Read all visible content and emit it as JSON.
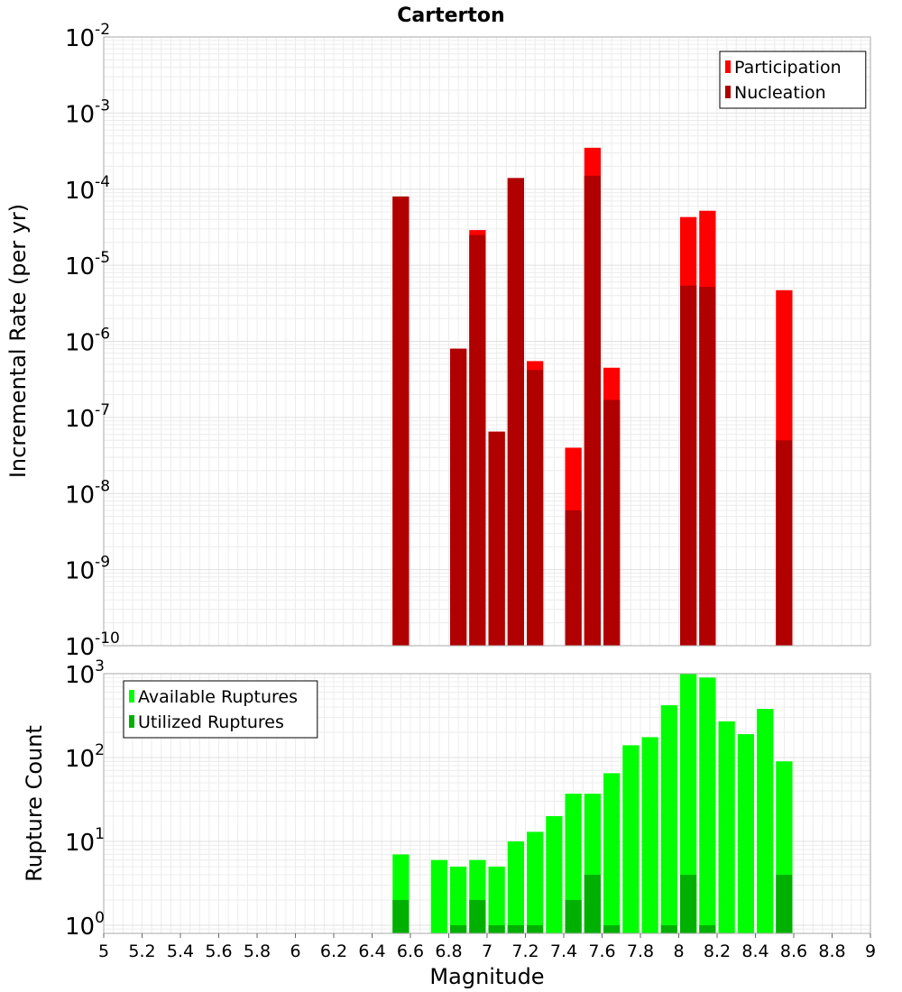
{
  "chart_data": [
    {
      "type": "bar",
      "title": "Carterton",
      "xlabel": "",
      "ylabel": "Incremental Rate (per yr)",
      "yscale": "log",
      "ylim": [
        1e-10,
        0.01
      ],
      "xlim": [
        5,
        9
      ],
      "grid": true,
      "legend_position": "top-right",
      "y_ticks": [
        {
          "base": "10",
          "exp": "-10"
        },
        {
          "base": "10",
          "exp": "-9"
        },
        {
          "base": "10",
          "exp": "-8"
        },
        {
          "base": "10",
          "exp": "-7"
        },
        {
          "base": "10",
          "exp": "-6"
        },
        {
          "base": "10",
          "exp": "-5"
        },
        {
          "base": "10",
          "exp": "-4"
        },
        {
          "base": "10",
          "exp": "-3"
        },
        {
          "base": "10",
          "exp": "-2"
        }
      ],
      "series": [
        {
          "name": "Participation",
          "color": "#ff0000",
          "points": [
            {
              "x": 6.55,
              "y": 8e-05
            },
            {
              "x": 6.85,
              "y": 8e-07
            },
            {
              "x": 6.95,
              "y": 2.9e-05
            },
            {
              "x": 7.05,
              "y": 6.5e-08
            },
            {
              "x": 7.15,
              "y": 0.00014
            },
            {
              "x": 7.25,
              "y": 5.5e-07
            },
            {
              "x": 7.45,
              "y": 4e-08
            },
            {
              "x": 7.55,
              "y": 0.00035
            },
            {
              "x": 7.65,
              "y": 4.5e-07
            },
            {
              "x": 8.05,
              "y": 4.3e-05
            },
            {
              "x": 8.15,
              "y": 5.2e-05
            },
            {
              "x": 8.55,
              "y": 4.7e-06
            }
          ]
        },
        {
          "name": "Nucleation",
          "color": "#b00000",
          "points": [
            {
              "x": 6.55,
              "y": 8e-05
            },
            {
              "x": 6.85,
              "y": 8e-07
            },
            {
              "x": 6.95,
              "y": 2.5e-05
            },
            {
              "x": 7.05,
              "y": 6.5e-08
            },
            {
              "x": 7.15,
              "y": 0.00014
            },
            {
              "x": 7.25,
              "y": 4.2e-07
            },
            {
              "x": 7.45,
              "y": 6e-09
            },
            {
              "x": 7.55,
              "y": 0.00015
            },
            {
              "x": 7.65,
              "y": 1.7e-07
            },
            {
              "x": 8.05,
              "y": 5.4e-06
            },
            {
              "x": 8.15,
              "y": 5.2e-06
            },
            {
              "x": 8.55,
              "y": 5e-08
            }
          ]
        }
      ]
    },
    {
      "type": "bar",
      "title": "",
      "xlabel": "Magnitude",
      "ylabel": "Rupture Count",
      "yscale": "log",
      "ylim": [
        0.8,
        1000
      ],
      "xlim": [
        5,
        9
      ],
      "grid": true,
      "legend_position": "top-left",
      "x_ticks": [
        "5",
        "5.2",
        "5.4",
        "5.6",
        "5.8",
        "6",
        "6.2",
        "6.4",
        "6.6",
        "6.8",
        "7",
        "7.2",
        "7.4",
        "7.6",
        "7.8",
        "8",
        "8.2",
        "8.4",
        "8.6",
        "8.8",
        "9"
      ],
      "y_ticks": [
        {
          "base": "10",
          "exp": "0"
        },
        {
          "base": "10",
          "exp": "1"
        },
        {
          "base": "10",
          "exp": "2"
        },
        {
          "base": "10",
          "exp": "3"
        }
      ],
      "series": [
        {
          "name": "Available Ruptures",
          "color": "#00ff00",
          "points": [
            {
              "x": 6.55,
              "y": 7
            },
            {
              "x": 6.75,
              "y": 6
            },
            {
              "x": 6.85,
              "y": 5
            },
            {
              "x": 6.95,
              "y": 6
            },
            {
              "x": 7.05,
              "y": 5
            },
            {
              "x": 7.15,
              "y": 10
            },
            {
              "x": 7.25,
              "y": 13
            },
            {
              "x": 7.35,
              "y": 20
            },
            {
              "x": 7.45,
              "y": 37
            },
            {
              "x": 7.55,
              "y": 37
            },
            {
              "x": 7.65,
              "y": 65
            },
            {
              "x": 7.75,
              "y": 140
            },
            {
              "x": 7.85,
              "y": 175
            },
            {
              "x": 7.95,
              "y": 420
            },
            {
              "x": 8.05,
              "y": 1000
            },
            {
              "x": 8.15,
              "y": 900
            },
            {
              "x": 8.25,
              "y": 270
            },
            {
              "x": 8.35,
              "y": 190
            },
            {
              "x": 8.45,
              "y": 380
            },
            {
              "x": 8.55,
              "y": 90
            }
          ]
        },
        {
          "name": "Utilized Ruptures",
          "color": "#00b000",
          "points": [
            {
              "x": 6.55,
              "y": 2
            },
            {
              "x": 6.85,
              "y": 1
            },
            {
              "x": 6.95,
              "y": 2
            },
            {
              "x": 7.05,
              "y": 1
            },
            {
              "x": 7.15,
              "y": 1
            },
            {
              "x": 7.25,
              "y": 1
            },
            {
              "x": 7.45,
              "y": 2
            },
            {
              "x": 7.55,
              "y": 4
            },
            {
              "x": 7.65,
              "y": 1
            },
            {
              "x": 7.95,
              "y": 1
            },
            {
              "x": 8.05,
              "y": 4
            },
            {
              "x": 8.15,
              "y": 1
            },
            {
              "x": 8.55,
              "y": 4
            }
          ]
        }
      ]
    }
  ]
}
